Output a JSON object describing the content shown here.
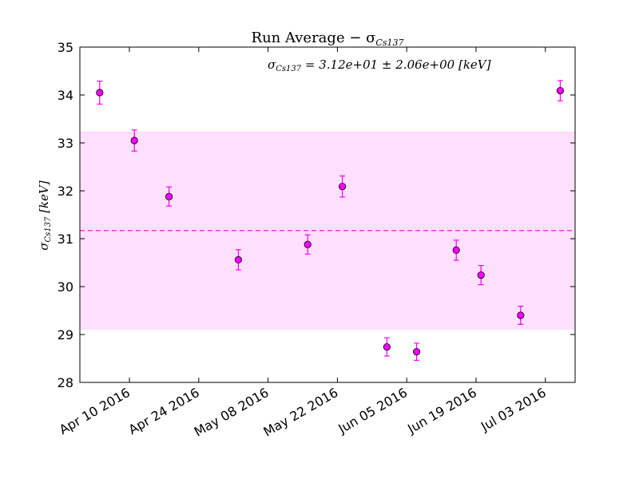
{
  "chart_data": {
    "type": "scatter",
    "title": "Run Average  −  σCs137",
    "ylabel": "σCs137 [keV]",
    "xlabel": "",
    "annotation": "σCs137 = 3.12e+01 ± 2.06e+00 [keV]",
    "ylim": [
      28,
      35
    ],
    "xlim": [
      "2016-03-31",
      "2016-07-09"
    ],
    "y_ticks": [
      28,
      29,
      30,
      31,
      32,
      33,
      34,
      35
    ],
    "x_ticks": [
      "2016-04-10",
      "2016-04-24",
      "2016-05-08",
      "2016-05-22",
      "2016-06-05",
      "2016-06-19",
      "2016-07-03"
    ],
    "x_tick_labels": [
      "Apr 10 2016",
      "Apr 24 2016",
      "May 08 2016",
      "May 22 2016",
      "Jun 05 2016",
      "Jun 19 2016",
      "Jul 03 2016"
    ],
    "mean": 31.17,
    "band": [
      29.11,
      33.23
    ],
    "grid": false,
    "color": "#ff00ff",
    "band_color": "#ffe0ff",
    "points": [
      {
        "x": "2016-04-04",
        "y": 34.05,
        "err": 0.24
      },
      {
        "x": "2016-04-11",
        "y": 33.05,
        "err": 0.22
      },
      {
        "x": "2016-04-18",
        "y": 31.88,
        "err": 0.2
      },
      {
        "x": "2016-05-02",
        "y": 30.56,
        "err": 0.21
      },
      {
        "x": "2016-05-16",
        "y": 30.88,
        "err": 0.2
      },
      {
        "x": "2016-05-23",
        "y": 32.09,
        "err": 0.22
      },
      {
        "x": "2016-06-01",
        "y": 28.74,
        "err": 0.19
      },
      {
        "x": "2016-06-07",
        "y": 28.64,
        "err": 0.18
      },
      {
        "x": "2016-06-15",
        "y": 30.76,
        "err": 0.21
      },
      {
        "x": "2016-06-20",
        "y": 30.24,
        "err": 0.2
      },
      {
        "x": "2016-06-28",
        "y": 29.4,
        "err": 0.19
      },
      {
        "x": "2016-07-06",
        "y": 34.09,
        "err": 0.21
      }
    ]
  }
}
